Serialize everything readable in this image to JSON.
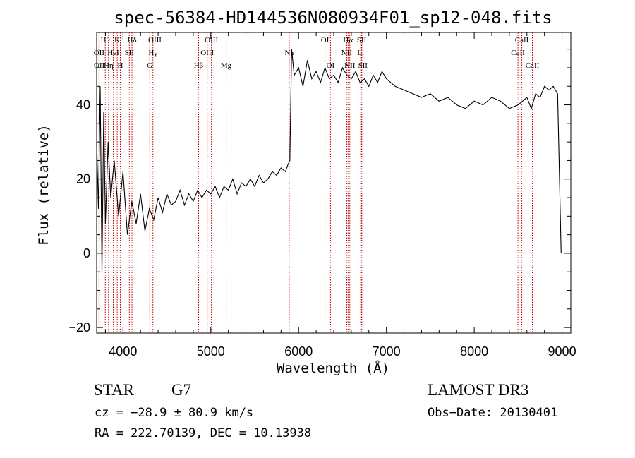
{
  "chart_data": {
    "type": "line",
    "title": "spec-56384-HD144536N080934F01_sp12-048.fits",
    "xlabel": "Wavelength (Å)",
    "ylabel": "Flux (relative)",
    "xlim": [
      3700,
      9100
    ],
    "ylim": [
      -21.5,
      59.5
    ],
    "xticks": [
      4000,
      5000,
      6000,
      7000,
      8000,
      9000
    ],
    "xtick_labels": [
      "4000",
      "5000",
      "6000",
      "7000",
      "8000",
      "9000"
    ],
    "yticks": [
      -20,
      0,
      20,
      40
    ],
    "ytick_labels": [
      "−20",
      "0",
      "20",
      "40"
    ],
    "series": [
      {
        "name": "spectrum",
        "x": [
          3700,
          3720,
          3740,
          3760,
          3780,
          3800,
          3830,
          3860,
          3900,
          3950,
          4000,
          4050,
          4100,
          4150,
          4200,
          4250,
          4300,
          4350,
          4400,
          4450,
          4500,
          4550,
          4600,
          4650,
          4700,
          4750,
          4800,
          4850,
          4900,
          4950,
          5000,
          5050,
          5100,
          5150,
          5200,
          5250,
          5300,
          5350,
          5400,
          5450,
          5500,
          5550,
          5600,
          5650,
          5700,
          5750,
          5800,
          5850,
          5880,
          5900,
          5920,
          5950,
          6000,
          6050,
          6100,
          6150,
          6200,
          6250,
          6300,
          6350,
          6400,
          6450,
          6500,
          6550,
          6600,
          6650,
          6700,
          6750,
          6800,
          6850,
          6900,
          6950,
          7000,
          7100,
          7200,
          7300,
          7400,
          7500,
          7600,
          7700,
          7800,
          7900,
          8000,
          8100,
          8200,
          8300,
          8400,
          8500,
          8550,
          8600,
          8650,
          8700,
          8750,
          8800,
          8850,
          8900,
          8950,
          8990
        ],
        "y": [
          30,
          12,
          45,
          -5,
          38,
          8,
          30,
          15,
          25,
          10,
          22,
          5,
          14,
          8,
          16,
          6,
          12,
          9,
          15,
          11,
          16,
          13,
          14,
          17,
          13,
          16,
          14,
          17,
          15,
          17,
          16,
          18,
          15,
          18,
          17,
          20,
          16,
          19,
          18,
          20,
          18,
          21,
          19,
          20,
          22,
          21,
          23,
          22,
          24,
          25,
          55,
          48,
          50,
          45,
          52,
          47,
          49,
          46,
          50,
          47,
          48,
          46,
          50,
          48,
          47,
          49,
          46,
          47,
          45,
          48,
          46,
          49,
          47,
          45,
          44,
          43,
          42,
          43,
          41,
          42,
          40,
          39,
          41,
          40,
          42,
          41,
          39,
          40,
          41,
          42,
          39,
          43,
          42,
          45,
          44,
          45,
          43,
          0
        ]
      }
    ],
    "lines": [
      {
        "label": "OII",
        "wave": 3727,
        "row": 1
      },
      {
        "label": "OII",
        "wave": 3729,
        "row": 2
      },
      {
        "label": "Hθ",
        "wave": 3798,
        "row": 0
      },
      {
        "label": "Hη",
        "wave": 3835,
        "row": 2
      },
      {
        "label": "HeI",
        "wave": 3889,
        "row": 1
      },
      {
        "label": "K",
        "wave": 3934,
        "row": 0
      },
      {
        "label": "H",
        "wave": 3969,
        "row": 2
      },
      {
        "label": "SII",
        "wave": 4072,
        "row": 1
      },
      {
        "label": "Hδ",
        "wave": 4102,
        "row": 0
      },
      {
        "label": "G",
        "wave": 4305,
        "row": 2
      },
      {
        "label": "Hγ",
        "wave": 4341,
        "row": 1
      },
      {
        "label": "OIII",
        "wave": 4363,
        "row": 0
      },
      {
        "label": "Hβ",
        "wave": 4861,
        "row": 2
      },
      {
        "label": "OIII",
        "wave": 4959,
        "row": 1
      },
      {
        "label": "OIII",
        "wave": 5007,
        "row": 0
      },
      {
        "label": "Mg",
        "wave": 5175,
        "row": 2
      },
      {
        "label": "Na",
        "wave": 5893,
        "row": 1
      },
      {
        "label": "OI",
        "wave": 6300,
        "row": 0
      },
      {
        "label": "OI",
        "wave": 6363,
        "row": 2
      },
      {
        "label": "NII",
        "wave": 6548,
        "row": 1
      },
      {
        "label": "Hα",
        "wave": 6563,
        "row": 0
      },
      {
        "label": "NII",
        "wave": 6583,
        "row": 2
      },
      {
        "label": "Li",
        "wave": 6707,
        "row": 1
      },
      {
        "label": "SII",
        "wave": 6717,
        "row": 0
      },
      {
        "label": "SII",
        "wave": 6731,
        "row": 2
      },
      {
        "label": "CaII",
        "wave": 8498,
        "row": 1
      },
      {
        "label": "CaII",
        "wave": 8542,
        "row": 0
      },
      {
        "label": "CaII",
        "wave": 8662,
        "row": 2
      }
    ]
  },
  "info": {
    "obj_class": "STAR",
    "subclass": "G7",
    "survey": "LAMOST DR3",
    "cz_line": "cz = −28.9 ± 80.9 km/s",
    "obsdate_line": "Obs−Date: 20130401",
    "radec_line": "RA = 222.70139, DEC =  10.13938"
  },
  "colors": {
    "spectrum": "#000000",
    "line_marker": "#c00000",
    "axis": "#000000"
  }
}
